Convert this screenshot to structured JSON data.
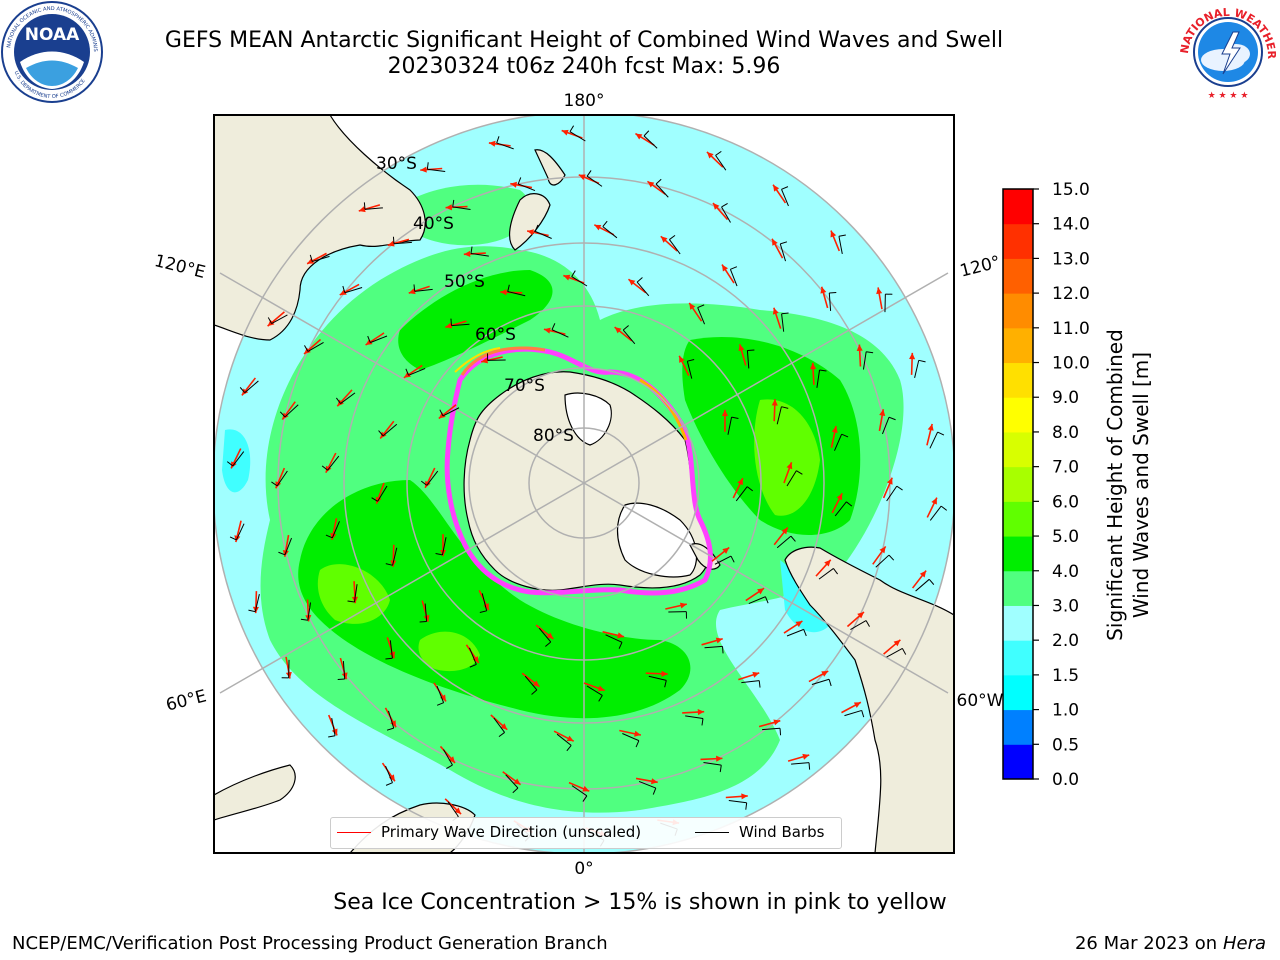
{
  "title": {
    "line1": "GEFS MEAN Antarctic Significant Height of Combined Wind Waves and Swell",
    "line2": "20230324 t06z 240h fcst   Max: 5.96"
  },
  "logos": {
    "left": "NOAA",
    "right": "NATIONAL WEATHER SERVICE"
  },
  "map": {
    "projection": "south-polar-stereographic",
    "longitude_labels": {
      "top": "180°",
      "bottom": "0°",
      "upper_left": "120°E",
      "upper_right": "120°",
      "lower_left": "60°E",
      "lower_right": "60°W"
    },
    "latitude_labels": [
      "30°S",
      "40°S",
      "50°S",
      "60°S",
      "70°S",
      "80°S"
    ],
    "colors": {
      "land": "#efeddc",
      "ice_sheet": "#ffffff",
      "sea_ice_edge": "#ff40ff",
      "wave_direction_arrow": "#ff2000",
      "wind_barb": "#000000",
      "gridline": "#b0b0b0"
    }
  },
  "legend": {
    "primary_wave_label": "Primary Wave Direction (unscaled)",
    "wind_barbs_label": "Wind Barbs",
    "primary_wave_color": "#ff0000",
    "wind_barbs_color": "#000000"
  },
  "colorbar": {
    "label": "Significant Height of Combined\nWind Waves and Swell [m]",
    "ticks": [
      "0.0",
      "0.5",
      "1.0",
      "1.5",
      "2.0",
      "3.0",
      "4.0",
      "5.0",
      "6.0",
      "7.0",
      "8.0",
      "9.0",
      "10.0",
      "11.0",
      "12.0",
      "13.0",
      "14.0",
      "15.0"
    ],
    "colors": [
      "#0000ff",
      "#0080ff",
      "#00ffff",
      "#40ffff",
      "#a0ffff",
      "#50ff80",
      "#00ee00",
      "#60ff00",
      "#a8ff00",
      "#d8ff00",
      "#ffff00",
      "#ffe000",
      "#ffb000",
      "#ff8c00",
      "#ff6000",
      "#ff3000",
      "#ff0000"
    ]
  },
  "note": "Sea Ice Concentration > 15% is shown in pink to yellow",
  "footer": {
    "left": "NCEP/EMC/Verification Post Processing Product Generation Branch",
    "date": "26 Mar 2023 on",
    "host": "Hera"
  }
}
